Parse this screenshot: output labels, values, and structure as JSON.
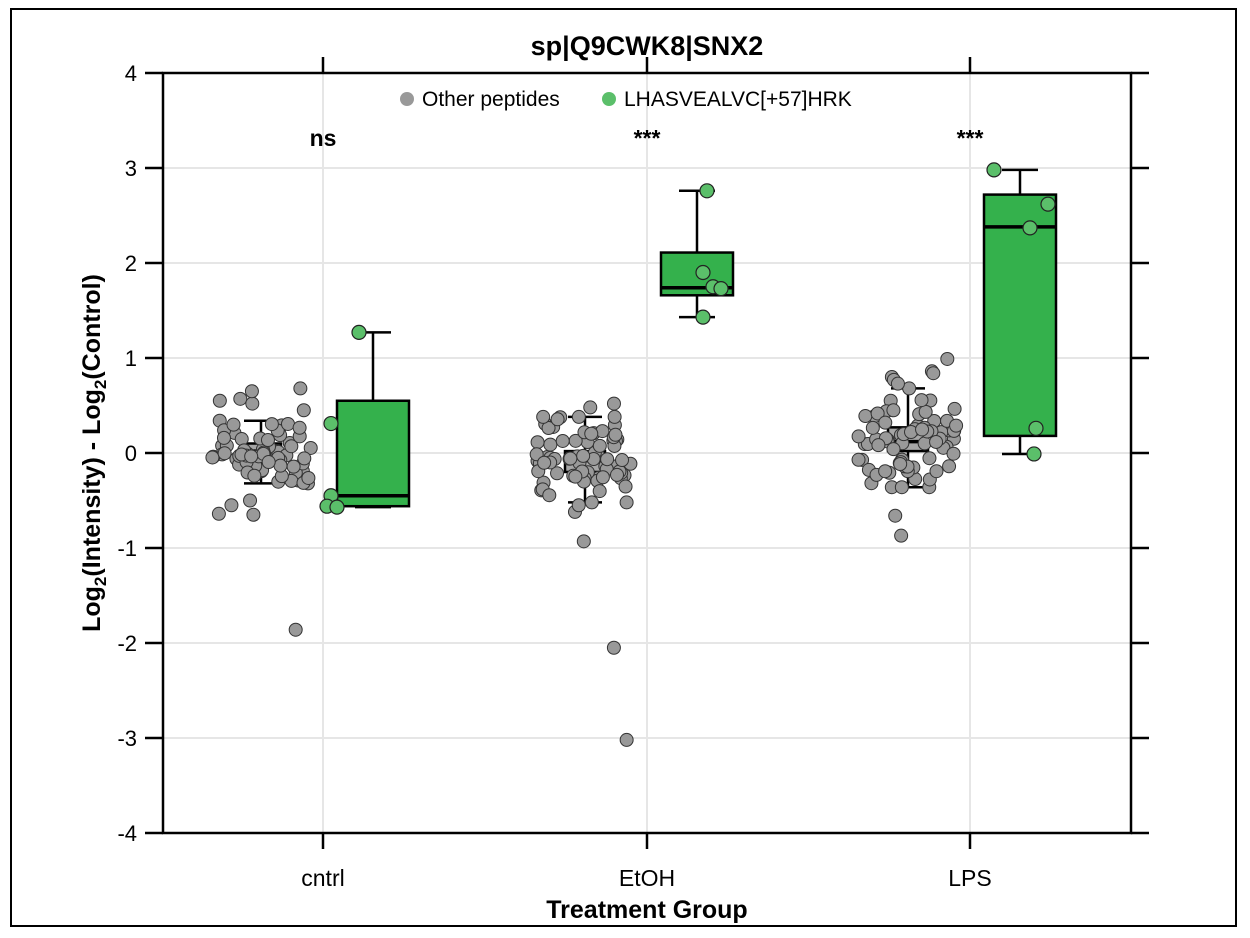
{
  "chart_data": {
    "type": "box",
    "title": "sp|Q9CWK8|SNX2",
    "xlabel": "Treatment Group",
    "ylabel_main": "Log",
    "ylabel_sub": "2",
    "ylabel_mid": "(Intensity) - Log",
    "ylabel_sub2": "2",
    "ylabel_end": "(Control)",
    "ylim": [
      -4,
      4
    ],
    "yticks": [
      -4,
      -3,
      -2,
      -1,
      0,
      1,
      2,
      3,
      4
    ],
    "ytick_labels": [
      "-4",
      "-3",
      "-2",
      "-1",
      "0",
      "1",
      "2",
      "3",
      "4"
    ],
    "categories": [
      "cntrl",
      "EtOH",
      "LPS"
    ],
    "significance": [
      "ns",
      "***",
      "***"
    ],
    "grid": true,
    "legend_position": "top-center",
    "series": [
      {
        "name": "Other peptides",
        "color": "#999999",
        "box_fill": "#a6a6a6",
        "boxes": [
          {
            "whisker_low": -0.32,
            "q1": -0.05,
            "median": 0.02,
            "q3": 0.1,
            "whisker_high": 0.34
          },
          {
            "whisker_low": -0.52,
            "q1": -0.2,
            "median": -0.08,
            "q3": 0.02,
            "whisker_high": 0.38
          },
          {
            "whisker_low": -0.36,
            "q1": 0.02,
            "median": 0.12,
            "q3": 0.27,
            "whisker_high": 0.68
          }
        ],
        "outliers": [
          [
            -1.86,
            0.57,
            0.55,
            0.52,
            0.65,
            0.68,
            0.45,
            -0.64,
            -0.65,
            -0.5,
            -0.55
          ],
          [
            -2.05,
            -3.02,
            -0.93,
            -0.62,
            -0.55,
            0.52,
            0.48
          ],
          [
            0.99,
            0.86,
            0.84,
            0.8,
            0.77,
            0.73,
            -0.66,
            -0.87
          ]
        ],
        "n_inliers": 70
      },
      {
        "name": "LHASVEALVC[+57]HRK",
        "color": "#5bbf6a",
        "box_fill": "#34b14c",
        "boxes": [
          {
            "whisker_low": -0.57,
            "q1": -0.56,
            "median": -0.45,
            "q3": 0.55,
            "whisker_high": 1.27
          },
          {
            "whisker_low": 1.43,
            "q1": 1.66,
            "median": 1.74,
            "q3": 2.11,
            "whisker_high": 2.76
          },
          {
            "whisker_low": -0.01,
            "q1": 0.18,
            "median": 2.38,
            "q3": 2.72,
            "whisker_high": 2.98
          }
        ],
        "points": [
          [
            1.27,
            0.31,
            -0.45,
            -0.56,
            -0.57
          ],
          [
            2.76,
            1.9,
            1.75,
            1.73,
            1.43
          ],
          [
            2.98,
            2.62,
            2.37,
            0.26,
            -0.01
          ]
        ]
      }
    ]
  }
}
